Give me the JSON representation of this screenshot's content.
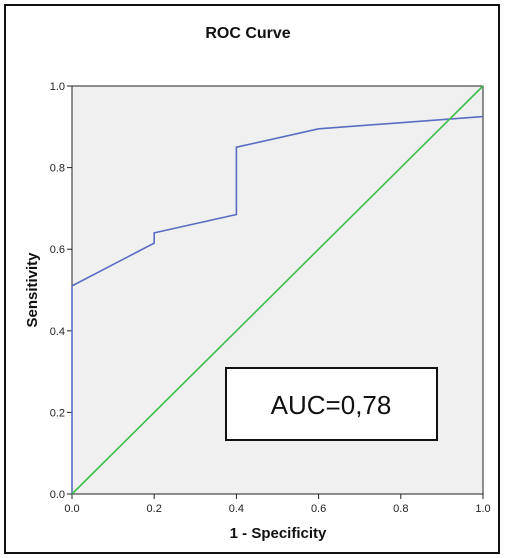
{
  "chart_data": {
    "type": "line",
    "title": "ROC Curve",
    "xlabel": "1 - Specificity",
    "ylabel": "Sensitivity",
    "xlim": [
      0,
      1
    ],
    "ylim": [
      0,
      1
    ],
    "xticks": [
      "0.0",
      "0.2",
      "0.4",
      "0.6",
      "0.8",
      "1.0"
    ],
    "yticks": [
      "0.0",
      "0.2",
      "0.4",
      "0.6",
      "0.8",
      "1.0"
    ],
    "grid": false,
    "series": [
      {
        "x": [
          0,
          0,
          0.2,
          0.2,
          0.4,
          0.4,
          0.6,
          1.0
        ],
        "y": [
          0,
          0.51,
          0.615,
          0.64,
          0.685,
          0.85,
          0.895,
          0.925
        ],
        "color": "#5b6cc4"
      },
      {
        "x": [
          0,
          1
        ],
        "y": [
          0,
          1
        ],
        "color": "#3cbf4a"
      }
    ],
    "annotation": "AUC=0,78",
    "plot_background": "#f0f0f0"
  }
}
